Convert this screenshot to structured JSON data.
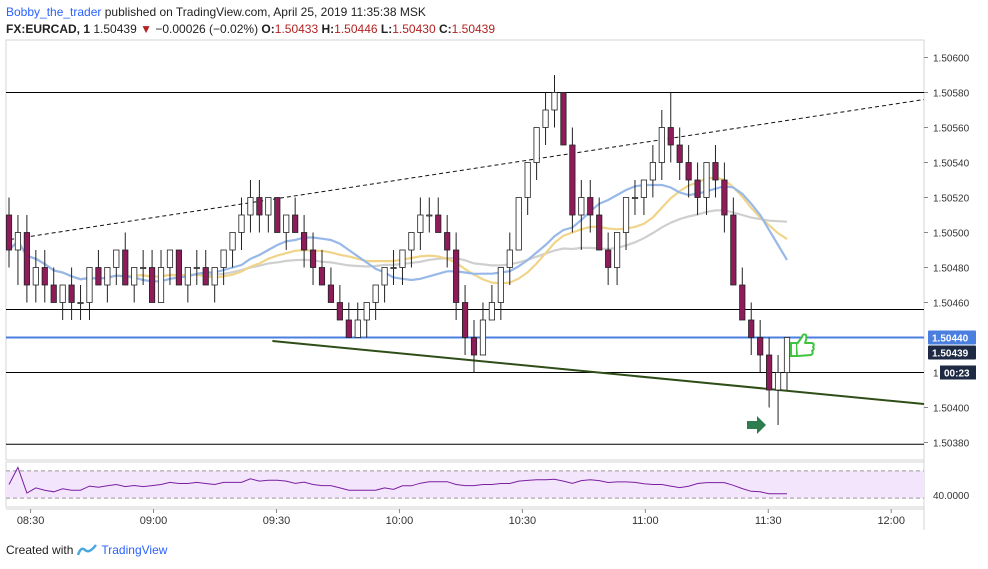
{
  "header": {
    "author": "Bobby_the_trader",
    "published_text": "published on TradingView.com, April 25, 2019 11:35:38 MSK"
  },
  "ticker": {
    "symbol": "FX:EURCAD, 1",
    "last": "1.50439",
    "change": "−0.00026 (−0.02%)",
    "o_label": "O:",
    "open": "1.50433",
    "h_label": "H:",
    "high": "1.50446",
    "l_label": "L:",
    "low": "1.50430",
    "c_label": "C:",
    "close": "1.50439",
    "down_arrow": "▼"
  },
  "colors": {
    "up": "#ffffff",
    "down": "#8e1b5a",
    "candle_border": "#222222",
    "hline": "#000000",
    "blue_line": "#4a7fe0",
    "trend_green": "#2e4d17",
    "ma_blue": "#97b8e8",
    "ma_gold": "#f0d488",
    "ma_gray": "#cfcfcf",
    "rsi": "#7b1fa2",
    "rsi_band": "#f3e5fb",
    "arrow_green": "#2e7d4f",
    "thumb_green": "#3fc43f",
    "price_label_blue": "#4a7fe0",
    "price_label_dark": "#1e2a44"
  },
  "chart_data": {
    "type": "candlestick",
    "title": "FX:EURCAD, 1",
    "y_range": [
      1.5037,
      1.5061
    ],
    "x_range": [
      "08:24",
      "12:08"
    ],
    "x_ticks": [
      "08:30",
      "09:00",
      "09:30",
      "10:00",
      "10:30",
      "11:00",
      "11:30",
      "12:00"
    ],
    "y_ticks": [
      "1.50600",
      "1.50580",
      "1.50560",
      "1.50540",
      "1.50520",
      "1.50500",
      "1.50480",
      "1.50460",
      "1.50400",
      "1.50380"
    ],
    "horizontal_levels": [
      1.5058,
      1.50456,
      1.5042,
      1.50379
    ],
    "blue_level": 1.5044,
    "current_price_label": "1.50440",
    "last_price_label": "1.50439",
    "countdown_label": "00:23",
    "partial_label": "1",
    "rsi_label": "40.0000",
    "rsi_levels": [
      70,
      30
    ],
    "trend_lines": [
      {
        "name": "dashed-resistance",
        "from": [
          "08:25",
          1.50496
        ],
        "to": [
          "12:08",
          1.50576
        ],
        "style": "dashed"
      },
      {
        "name": "green-support",
        "from": [
          "09:29",
          1.50438
        ],
        "to": [
          "12:08",
          1.50402
        ],
        "style": "solid"
      }
    ],
    "series": [
      {
        "name": "candles",
        "ohlc": [
          [
            1.5051,
            1.5052,
            1.5048,
            1.5049
          ],
          [
            1.5049,
            1.5051,
            1.5047,
            1.505
          ],
          [
            1.505,
            1.5051,
            1.5046,
            1.5047
          ],
          [
            1.5047,
            1.5049,
            1.5046,
            1.5048
          ],
          [
            1.5048,
            1.5049,
            1.5046,
            1.5047
          ],
          [
            1.5047,
            1.5048,
            1.5046,
            1.5046
          ],
          [
            1.5046,
            1.5047,
            1.5045,
            1.5047
          ],
          [
            1.5047,
            1.5048,
            1.5045,
            1.5046
          ],
          [
            1.5046,
            1.5047,
            1.5045,
            1.5046
          ],
          [
            1.5046,
            1.5048,
            1.5045,
            1.5048
          ],
          [
            1.5048,
            1.5049,
            1.5047,
            1.5047
          ],
          [
            1.5047,
            1.5048,
            1.5046,
            1.5048
          ],
          [
            1.5048,
            1.5049,
            1.5047,
            1.5049
          ],
          [
            1.5049,
            1.505,
            1.5047,
            1.5047
          ],
          [
            1.5047,
            1.5048,
            1.5046,
            1.5048
          ],
          [
            1.5048,
            1.5049,
            1.5047,
            1.5048
          ],
          [
            1.5048,
            1.5049,
            1.5046,
            1.5046
          ],
          [
            1.5046,
            1.5049,
            1.5046,
            1.5048
          ],
          [
            1.5048,
            1.5049,
            1.5047,
            1.5049
          ],
          [
            1.5049,
            1.5049,
            1.5047,
            1.5047
          ],
          [
            1.5047,
            1.5048,
            1.5046,
            1.5048
          ],
          [
            1.5048,
            1.5049,
            1.5047,
            1.5048
          ],
          [
            1.5048,
            1.5049,
            1.5047,
            1.5047
          ],
          [
            1.5047,
            1.5048,
            1.5046,
            1.5048
          ],
          [
            1.5048,
            1.5049,
            1.5047,
            1.5049
          ],
          [
            1.5049,
            1.505,
            1.5048,
            1.505
          ],
          [
            1.505,
            1.5052,
            1.5049,
            1.5051
          ],
          [
            1.5051,
            1.5053,
            1.505,
            1.5052
          ],
          [
            1.5052,
            1.5053,
            1.505,
            1.5051
          ],
          [
            1.5051,
            1.5052,
            1.505,
            1.5052
          ],
          [
            1.5052,
            1.5052,
            1.505,
            1.505
          ],
          [
            1.505,
            1.5051,
            1.5049,
            1.5051
          ],
          [
            1.5051,
            1.5052,
            1.505,
            1.505
          ],
          [
            1.505,
            1.5051,
            1.5048,
            1.5049
          ],
          [
            1.5049,
            1.505,
            1.5047,
            1.5048
          ],
          [
            1.5048,
            1.5049,
            1.5047,
            1.5047
          ],
          [
            1.5047,
            1.5048,
            1.5046,
            1.5046
          ],
          [
            1.5046,
            1.5047,
            1.5045,
            1.5045
          ],
          [
            1.5045,
            1.5046,
            1.5044,
            1.5044
          ],
          [
            1.5044,
            1.5046,
            1.5044,
            1.5045
          ],
          [
            1.5045,
            1.5046,
            1.5044,
            1.5046
          ],
          [
            1.5046,
            1.5047,
            1.5045,
            1.5047
          ],
          [
            1.5047,
            1.5048,
            1.5046,
            1.5048
          ],
          [
            1.5048,
            1.5049,
            1.5047,
            1.5048
          ],
          [
            1.5048,
            1.5049,
            1.5047,
            1.5049
          ],
          [
            1.5049,
            1.505,
            1.5048,
            1.505
          ],
          [
            1.505,
            1.5052,
            1.5049,
            1.5051
          ],
          [
            1.5051,
            1.5052,
            1.505,
            1.5051
          ],
          [
            1.5051,
            1.5052,
            1.505,
            1.505
          ],
          [
            1.505,
            1.5051,
            1.5048,
            1.5049
          ],
          [
            1.5049,
            1.505,
            1.5045,
            1.5046
          ],
          [
            1.5046,
            1.5047,
            1.5043,
            1.5044
          ],
          [
            1.5044,
            1.5045,
            1.5042,
            1.5043
          ],
          [
            1.5043,
            1.5046,
            1.5043,
            1.5045
          ],
          [
            1.5045,
            1.5047,
            1.5045,
            1.5046
          ],
          [
            1.5046,
            1.5048,
            1.5045,
            1.5048
          ],
          [
            1.5048,
            1.505,
            1.5047,
            1.5049
          ],
          [
            1.5049,
            1.5052,
            1.5049,
            1.5052
          ],
          [
            1.5052,
            1.5054,
            1.5051,
            1.5054
          ],
          [
            1.5054,
            1.5056,
            1.5053,
            1.5056
          ],
          [
            1.5056,
            1.5058,
            1.5055,
            1.5057
          ],
          [
            1.5057,
            1.5059,
            1.5056,
            1.5058
          ],
          [
            1.5058,
            1.5058,
            1.5055,
            1.5055
          ],
          [
            1.5055,
            1.5056,
            1.505,
            1.5051
          ],
          [
            1.5051,
            1.5053,
            1.5049,
            1.5052
          ],
          [
            1.5052,
            1.5053,
            1.505,
            1.5051
          ],
          [
            1.5051,
            1.5052,
            1.5049,
            1.5049
          ],
          [
            1.5049,
            1.505,
            1.5047,
            1.5048
          ],
          [
            1.5048,
            1.505,
            1.5047,
            1.505
          ],
          [
            1.505,
            1.5052,
            1.5049,
            1.5052
          ],
          [
            1.5052,
            1.5053,
            1.5051,
            1.5052
          ],
          [
            1.5052,
            1.5053,
            1.5051,
            1.5053
          ],
          [
            1.5053,
            1.5055,
            1.5052,
            1.5054
          ],
          [
            1.5054,
            1.5057,
            1.5053,
            1.5056
          ],
          [
            1.5056,
            1.5058,
            1.5054,
            1.5055
          ],
          [
            1.5055,
            1.5056,
            1.5053,
            1.5054
          ],
          [
            1.5054,
            1.5055,
            1.5052,
            1.5053
          ],
          [
            1.5053,
            1.5054,
            1.5051,
            1.5052
          ],
          [
            1.5052,
            1.5054,
            1.5051,
            1.5054
          ],
          [
            1.5054,
            1.5055,
            1.5052,
            1.5053
          ],
          [
            1.5053,
            1.5054,
            1.505,
            1.5051
          ],
          [
            1.5051,
            1.5052,
            1.5047,
            1.5047
          ],
          [
            1.5047,
            1.5048,
            1.5045,
            1.5045
          ],
          [
            1.5045,
            1.5046,
            1.5043,
            1.5044
          ],
          [
            1.5044,
            1.5045,
            1.5042,
            1.5043
          ],
          [
            1.5043,
            1.5044,
            1.504,
            1.5041
          ],
          [
            1.5041,
            1.5043,
            1.5039,
            1.5042
          ],
          [
            1.5042,
            1.5044,
            1.5041,
            1.5044
          ]
        ]
      },
      {
        "name": "ma-blue",
        "style": "moving-average"
      },
      {
        "name": "ma-gold",
        "style": "moving-average"
      },
      {
        "name": "ma-gray",
        "style": "moving-average"
      }
    ]
  },
  "footer": {
    "created_with": "Created with",
    "brand": "TradingView"
  }
}
